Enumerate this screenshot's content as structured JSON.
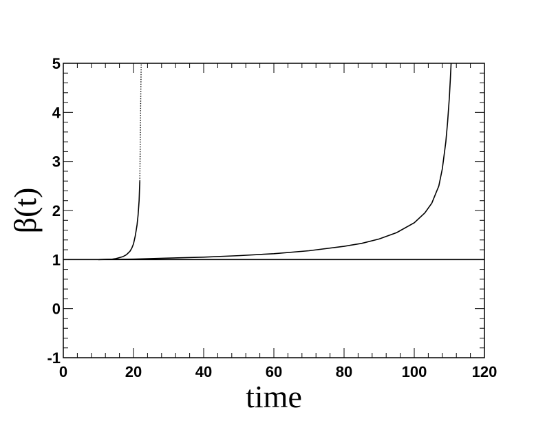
{
  "chart_data": {
    "type": "line",
    "xlabel": "time",
    "ylabel": "β(t)",
    "xlim": [
      0,
      120
    ],
    "ylim": [
      -1,
      5
    ],
    "x_ticks": [
      "0",
      "20",
      "40",
      "60",
      "80",
      "100",
      "120"
    ],
    "y_ticks": [
      "-1",
      "0",
      "1",
      "2",
      "3",
      "4",
      "5"
    ],
    "grid": false,
    "legend": "none",
    "series": [
      {
        "style": "solid",
        "color": "#000000",
        "x": [
          0,
          120
        ],
        "y": [
          1,
          1
        ]
      },
      {
        "style": "solid",
        "color": "#000000",
        "x": [
          10,
          12,
          14,
          15,
          16,
          17,
          18,
          19,
          19.5,
          20,
          20.5,
          21,
          21.3,
          21.6,
          21.8
        ],
        "y": [
          1.0,
          1.005,
          1.01,
          1.02,
          1.04,
          1.06,
          1.1,
          1.17,
          1.23,
          1.32,
          1.48,
          1.7,
          1.9,
          2.2,
          2.6
        ]
      },
      {
        "style": "dotted",
        "color": "#000000",
        "x": [
          21.8,
          21.9,
          22.0,
          22.1,
          22.2
        ],
        "y": [
          2.6,
          3.2,
          3.9,
          4.5,
          5.0
        ]
      },
      {
        "style": "solid",
        "color": "#000000",
        "x": [
          10,
          20,
          30,
          40,
          50,
          60,
          70,
          80,
          85,
          90,
          95,
          100,
          103,
          105,
          107,
          108,
          109,
          109.5,
          110,
          110.3,
          110.5
        ],
        "y": [
          1.0,
          1.01,
          1.03,
          1.05,
          1.08,
          1.12,
          1.18,
          1.27,
          1.33,
          1.42,
          1.55,
          1.75,
          1.95,
          2.15,
          2.5,
          2.85,
          3.4,
          3.8,
          4.3,
          4.7,
          5.0
        ]
      }
    ]
  }
}
